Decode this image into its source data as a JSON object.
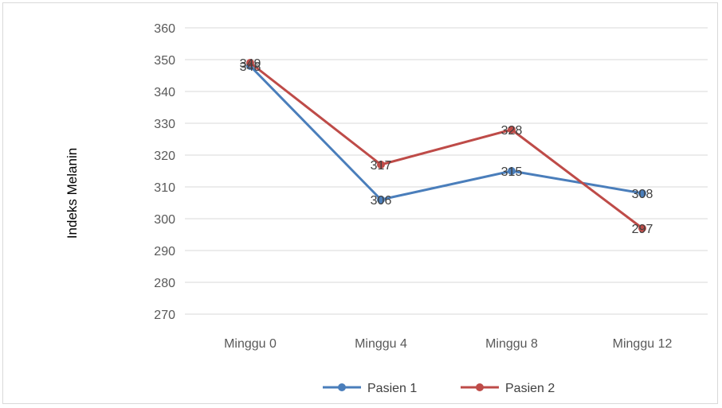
{
  "chart_data": {
    "type": "line",
    "title": "",
    "xlabel": "",
    "ylabel": "Indeks Melanin",
    "categories": [
      "Minggu 0",
      "Minggu 4",
      "Minggu 8",
      "Minggu 12"
    ],
    "series": [
      {
        "name": "Pasien 1",
        "values": [
          348,
          306,
          315,
          308
        ],
        "color": "#4a7ebb"
      },
      {
        "name": "Pasien 2",
        "values": [
          349,
          317,
          328,
          297
        ],
        "color": "#be4b48"
      }
    ],
    "ylim": [
      270,
      360
    ],
    "yticks": [
      270,
      280,
      290,
      300,
      310,
      320,
      330,
      340,
      350,
      360
    ],
    "grid": true,
    "legend_position": "bottom"
  }
}
